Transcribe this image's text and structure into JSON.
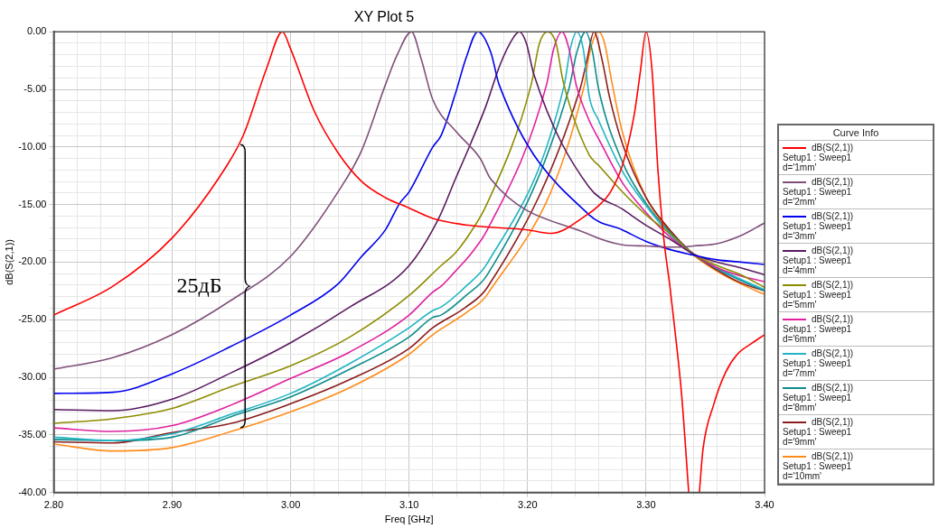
{
  "chart_data": {
    "type": "line",
    "title": "XY Plot 5",
    "xlabel": "Freq [GHz]",
    "ylabel": "dB(S(2,1))",
    "legend_title": "Curve Info",
    "legend": "right",
    "grid": true,
    "marker": "none",
    "line_style": "solid",
    "xlim": [
      2.8,
      3.4
    ],
    "ylim": [
      -40,
      0
    ],
    "xticks": [
      {
        "value": 2.8,
        "label": "2.80"
      },
      {
        "value": 2.82,
        "label": null
      },
      {
        "value": 2.84,
        "label": null
      },
      {
        "value": 2.86,
        "label": null
      },
      {
        "value": 2.88,
        "label": null
      },
      {
        "value": 2.9,
        "label": "2.90"
      },
      {
        "value": 2.92,
        "label": null
      },
      {
        "value": 2.94,
        "label": null
      },
      {
        "value": 2.96,
        "label": null
      },
      {
        "value": 2.98,
        "label": null
      },
      {
        "value": 3.0,
        "label": "3.00"
      },
      {
        "value": 3.02,
        "label": null
      },
      {
        "value": 3.04,
        "label": null
      },
      {
        "value": 3.06,
        "label": null
      },
      {
        "value": 3.08,
        "label": null
      },
      {
        "value": 3.1,
        "label": "3.10"
      },
      {
        "value": 3.12,
        "label": null
      },
      {
        "value": 3.14,
        "label": null
      },
      {
        "value": 3.16,
        "label": null
      },
      {
        "value": 3.18,
        "label": null
      },
      {
        "value": 3.2,
        "label": "3.20"
      },
      {
        "value": 3.22,
        "label": null
      },
      {
        "value": 3.24,
        "label": null
      },
      {
        "value": 3.26,
        "label": null
      },
      {
        "value": 3.28,
        "label": null
      },
      {
        "value": 3.3,
        "label": "3.30"
      },
      {
        "value": 3.32,
        "label": null
      },
      {
        "value": 3.34,
        "label": null
      },
      {
        "value": 3.36,
        "label": null
      },
      {
        "value": 3.38,
        "label": null
      },
      {
        "value": 3.4,
        "label": "3.40"
      }
    ],
    "yticks": [
      {
        "value": 0,
        "label": "0.00"
      },
      {
        "value": -1,
        "label": null
      },
      {
        "value": -2,
        "label": null
      },
      {
        "value": -3,
        "label": null
      },
      {
        "value": -4,
        "label": null
      },
      {
        "value": -5,
        "label": "-5.00"
      },
      {
        "value": -6,
        "label": null
      },
      {
        "value": -7,
        "label": null
      },
      {
        "value": -8,
        "label": null
      },
      {
        "value": -9,
        "label": null
      },
      {
        "value": -10,
        "label": "-10.00"
      },
      {
        "value": -11,
        "label": null
      },
      {
        "value": -12,
        "label": null
      },
      {
        "value": -13,
        "label": null
      },
      {
        "value": -14,
        "label": null
      },
      {
        "value": -15,
        "label": "-15.00"
      },
      {
        "value": -16,
        "label": null
      },
      {
        "value": -17,
        "label": null
      },
      {
        "value": -18,
        "label": null
      },
      {
        "value": -19,
        "label": null
      },
      {
        "value": -20,
        "label": "-20.00"
      },
      {
        "value": -21,
        "label": null
      },
      {
        "value": -22,
        "label": null
      },
      {
        "value": -23,
        "label": null
      },
      {
        "value": -24,
        "label": null
      },
      {
        "value": -25,
        "label": "-25.00"
      },
      {
        "value": -26,
        "label": null
      },
      {
        "value": -27,
        "label": null
      },
      {
        "value": -28,
        "label": null
      },
      {
        "value": -29,
        "label": null
      },
      {
        "value": -30,
        "label": "-30.00"
      },
      {
        "value": -31,
        "label": null
      },
      {
        "value": -32,
        "label": null
      },
      {
        "value": -33,
        "label": null
      },
      {
        "value": -34,
        "label": null
      },
      {
        "value": -35,
        "label": "-35.00"
      },
      {
        "value": -36,
        "label": null
      },
      {
        "value": -37,
        "label": null
      },
      {
        "value": -38,
        "label": null
      },
      {
        "value": -39,
        "label": null
      },
      {
        "value": -40,
        "label": "-40.00"
      }
    ],
    "annotations": [
      "25дБ"
    ],
    "series": [
      {
        "name": "dB(S(2,1))\nSetup1 : Sweep1\nd='1mm'",
        "color": "#ff0000",
        "x": [
          2.8,
          2.85,
          2.9,
          2.94,
          2.96,
          2.98,
          2.993,
          3.0,
          3.02,
          3.04,
          3.06,
          3.08,
          3.1,
          3.12,
          3.15,
          3.2,
          3.22,
          3.25,
          3.26,
          3.27,
          3.28,
          3.29,
          3.295,
          3.3,
          3.305,
          3.31,
          3.315,
          3.32,
          3.325,
          3.33,
          3.336,
          3.34,
          3.345,
          3.348,
          3.357,
          3.367,
          3.377,
          3.39,
          3.4
        ],
        "values": [
          -24.6,
          -22.1,
          -17.9,
          -12.6,
          -9.0,
          -3.1,
          0,
          -1.5,
          -6.9,
          -10.5,
          -13.0,
          -14.4,
          -15.3,
          -16.2,
          -16.8,
          -17.2,
          -17.5,
          -15.9,
          -15.1,
          -13.9,
          -11.6,
          -7.2,
          -3.6,
          0,
          -3.3,
          -12.0,
          -18.0,
          -22.0,
          -26.5,
          -31.5,
          -40,
          null,
          -40,
          -36.3,
          -32.4,
          -29.6,
          -28.0,
          -27.0,
          -26.3
        ]
      },
      {
        "name": "dB(S(2,1))\nSetup1 : Sweep1\nd='2mm'",
        "color": "#7f4f7a",
        "x": [
          2.8,
          2.85,
          2.9,
          2.95,
          3.0,
          3.04,
          3.06,
          3.08,
          3.09,
          3.102,
          3.11,
          3.12,
          3.14,
          3.16,
          3.169,
          3.252,
          3.28,
          3.3,
          3.32,
          3.33,
          3.34,
          3.36,
          3.38,
          3.4
        ],
        "values": [
          -29.3,
          -28.3,
          -26.3,
          -23.3,
          -19.5,
          -13.9,
          -10.3,
          -4.6,
          -2.0,
          0,
          -2.3,
          -5.9,
          -8.7,
          -11.0,
          -12.8,
          -17.6,
          -18.5,
          -18.6,
          -18.7,
          -18.7,
          -18.6,
          -18.4,
          -17.7,
          -16.6
        ]
      },
      {
        "name": "dB(S(2,1))\nSetup1 : Sweep1\nd='3mm'",
        "color": "#0000ee",
        "x": [
          2.8,
          2.85,
          2.9,
          2.95,
          3.0,
          3.04,
          3.06,
          3.08,
          3.092,
          3.1,
          3.12,
          3.127,
          3.139,
          3.148,
          3.158,
          3.169,
          3.176,
          3.252,
          3.28,
          3.3,
          3.32,
          3.34,
          3.36,
          3.38,
          3.4
        ],
        "values": [
          -31.4,
          -31.3,
          -29.7,
          -27.3,
          -24.6,
          -21.9,
          -19.5,
          -17.2,
          -14.9,
          -13.9,
          -10.0,
          -9.0,
          -5.4,
          -2.3,
          0,
          -1.8,
          -4.6,
          -15.9,
          -17.2,
          -18.2,
          -18.9,
          -19.4,
          -19.8,
          -20.0,
          -20.2
        ]
      },
      {
        "name": "dB(S(2,1))\nSetup1 : Sweep1\nd='4mm'",
        "color": "#5a1a5f",
        "x": [
          2.8,
          2.85,
          2.9,
          2.95,
          3.0,
          3.05,
          3.1,
          3.125,
          3.139,
          3.152,
          3.165,
          3.177,
          3.188,
          3.193,
          3.199,
          3.205,
          3.252,
          3.28,
          3.3,
          3.32,
          3.34,
          3.36,
          3.38,
          3.4
        ],
        "values": [
          -32.8,
          -32.9,
          -31.9,
          -29.6,
          -27.0,
          -23.9,
          -20.3,
          -16.2,
          -12.8,
          -9.7,
          -6.4,
          -2.8,
          -0.5,
          0,
          -1.0,
          -3.6,
          -13.5,
          -15.4,
          -16.8,
          -18.0,
          -19.3,
          -20.0,
          -20.5,
          -21.1
        ]
      },
      {
        "name": "dB(S(2,1))\nSetup1 : Sweep1\nd='5mm'",
        "color": "#8c8c00",
        "x": [
          2.8,
          2.85,
          2.9,
          2.95,
          3.0,
          3.05,
          3.1,
          3.127,
          3.139,
          3.152,
          3.165,
          3.203,
          3.21,
          3.217,
          3.224,
          3.23,
          3.252,
          3.26,
          3.28,
          3.3,
          3.32,
          3.34,
          3.36,
          3.38,
          3.4
        ],
        "values": [
          -34.0,
          -33.6,
          -32.7,
          -30.8,
          -29.0,
          -26.5,
          -22.9,
          -20.3,
          -19.2,
          -17.4,
          -15.1,
          -4.6,
          -1.0,
          0,
          -1.0,
          -4.3,
          -10.7,
          -11.6,
          -13.9,
          -15.9,
          -17.5,
          -19.3,
          -20.3,
          -21.1,
          -22.2
        ]
      },
      {
        "name": "dB(S(2,1))\nSetup1 : Sweep1\nd='6mm'",
        "color": "#e0209e",
        "x": [
          2.8,
          2.85,
          2.9,
          2.95,
          3.0,
          3.05,
          3.1,
          3.12,
          3.127,
          3.139,
          3.152,
          3.166,
          3.216,
          3.222,
          3.229,
          3.235,
          3.241,
          3.252,
          3.26,
          3.28,
          3.3,
          3.32,
          3.34,
          3.36,
          3.38,
          3.4
        ],
        "values": [
          -34.4,
          -34.7,
          -34.2,
          -32.4,
          -30.1,
          -27.8,
          -24.6,
          -22.6,
          -22.1,
          -20.8,
          -19.3,
          -17.2,
          -4.6,
          -1.5,
          0,
          -1.5,
          -4.6,
          -7.7,
          -9.3,
          -13.1,
          -15.7,
          -17.8,
          -19.3,
          -20.5,
          -21.2,
          -21.7
        ]
      },
      {
        "name": "dB(S(2,1))\nSetup1 : Sweep1\nd='7mm'",
        "color": "#20b4c4",
        "x": [
          2.8,
          2.85,
          2.9,
          2.95,
          3.0,
          3.05,
          3.1,
          3.12,
          3.127,
          3.148,
          3.166,
          3.231,
          3.236,
          3.2415,
          3.247,
          3.252,
          3.26,
          3.28,
          3.3,
          3.32,
          3.34,
          3.36,
          3.38,
          3.4
        ],
        "values": [
          -35.2,
          -35.5,
          -34.9,
          -33.2,
          -31.4,
          -28.8,
          -25.7,
          -24.2,
          -23.9,
          -22.1,
          -20.1,
          -4.6,
          -1.5,
          0,
          -1.5,
          -5.6,
          -7.7,
          -12.1,
          -15.1,
          -17.6,
          -19.3,
          -20.5,
          -21.5,
          -22.4
        ]
      },
      {
        "name": "dB(S(2,1))\nSetup1 : Sweep1\nd='8mm'",
        "color": "#108c8c",
        "x": [
          2.8,
          2.85,
          2.9,
          2.95,
          3.0,
          3.05,
          3.1,
          3.12,
          3.127,
          3.148,
          3.166,
          3.235,
          3.241,
          3.249,
          3.2545,
          3.26,
          3.28,
          3.3,
          3.32,
          3.34,
          3.36,
          3.38,
          3.4
        ],
        "values": [
          -35.4,
          -35.5,
          -35.2,
          -33.4,
          -31.7,
          -29.3,
          -26.5,
          -24.8,
          -24.6,
          -22.9,
          -21.1,
          -4.9,
          -2.0,
          0,
          -1.6,
          -5.0,
          -11.3,
          -14.9,
          -17.4,
          -19.3,
          -20.6,
          -21.6,
          -22.5
        ]
      },
      {
        "name": "dB(S(2,1))\nSetup1 : Sweep1\nd='9mm'",
        "color": "#8c1c1c",
        "x": [
          2.8,
          2.85,
          2.9,
          2.95,
          3.0,
          3.05,
          3.1,
          3.12,
          3.148,
          3.166,
          3.2445,
          3.25,
          3.256,
          3.263,
          3.269,
          3.28,
          3.3,
          3.32,
          3.34,
          3.36,
          3.38,
          3.4
        ],
        "values": [
          -35.6,
          -35.7,
          -34.8,
          -34.0,
          -32.3,
          -30.2,
          -27.5,
          -25.7,
          -23.9,
          -22.2,
          -4.9,
          -2.5,
          0,
          -2.5,
          -5.6,
          -9.7,
          -14.4,
          -17.2,
          -19.3,
          -20.7,
          -21.8,
          -22.5
        ]
      },
      {
        "name": "dB(S(2,1))\nSetup1 : Sweep1\nd='10mm'",
        "color": "#ff8c1a",
        "x": [
          2.8,
          2.85,
          2.9,
          2.95,
          3.0,
          3.05,
          3.1,
          3.12,
          3.148,
          3.166,
          3.248,
          3.252,
          3.26,
          3.265,
          3.271,
          3.28,
          3.3,
          3.32,
          3.34,
          3.36,
          3.38,
          3.4
        ],
        "values": [
          -35.8,
          -36.4,
          -36.1,
          -34.7,
          -33.0,
          -30.9,
          -28.0,
          -26.3,
          -24.4,
          -22.8,
          -4.6,
          -2.0,
          0,
          -1.0,
          -4.3,
          -8.7,
          -14.4,
          -17.3,
          -19.4,
          -20.8,
          -21.9,
          -22.8
        ]
      }
    ]
  }
}
